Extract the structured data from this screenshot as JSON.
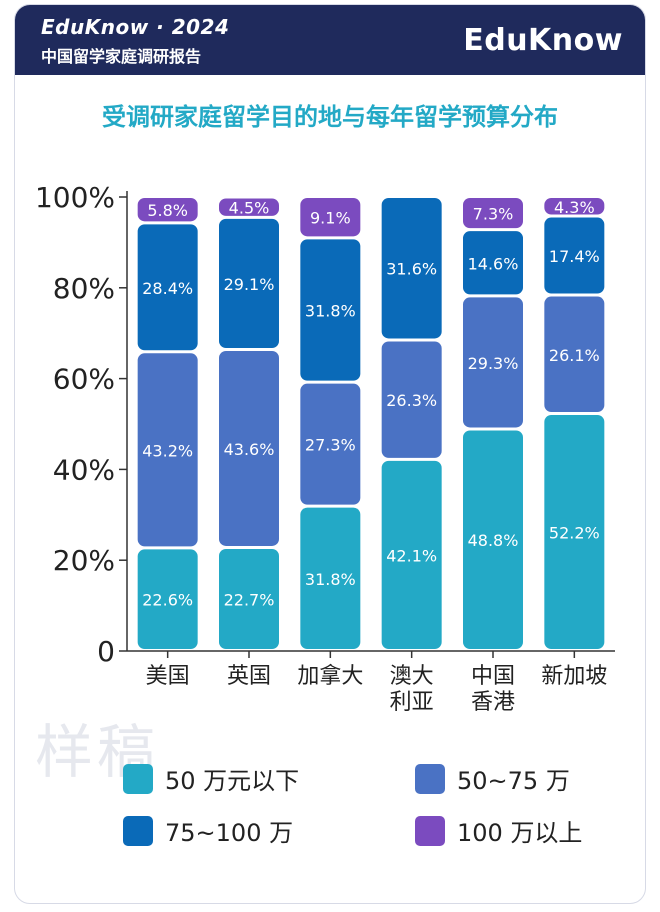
{
  "header": {
    "brand": "EduKnow · 2024",
    "subtitle": "中国留学家庭调研报告",
    "logo": "EduKnow"
  },
  "watermark": "样稿",
  "chart_data": {
    "type": "bar",
    "stacked": true,
    "title": "受调研家庭留学目的地与每年留学预算分布",
    "categories": [
      [
        "美国"
      ],
      [
        "英国"
      ],
      [
        "加拿大"
      ],
      [
        "澳大",
        "利亚"
      ],
      [
        "中国",
        "香港"
      ],
      [
        "新加坡"
      ]
    ],
    "ylim": [
      0,
      100
    ],
    "yticks": [
      "0",
      "20%",
      "40%",
      "60%",
      "80%",
      "100%"
    ],
    "series": [
      {
        "name": "50 万元以下",
        "color": "#23a9c6",
        "values": [
          22.6,
          22.7,
          31.8,
          42.1,
          48.8,
          52.2
        ],
        "labels": [
          "22.6%",
          "22.7%",
          "31.8%",
          "42.1%",
          "48.8%",
          "52.2%"
        ]
      },
      {
        "name": "50~75 万",
        "color": "#4a72c4",
        "values": [
          43.2,
          43.6,
          27.3,
          26.3,
          29.3,
          26.1
        ],
        "labels": [
          "43.2%",
          "43.6%",
          "27.3%",
          "26.3%",
          "29.3%",
          "26.1%"
        ]
      },
      {
        "name": "75~100 万",
        "color": "#0a6ab8",
        "values": [
          28.4,
          29.1,
          31.8,
          31.6,
          14.6,
          17.4
        ],
        "labels": [
          "28.4%",
          "29.1%",
          "31.8%",
          "31.6%",
          "14.6%",
          "17.4%"
        ]
      },
      {
        "name": "100 万以上",
        "color": "#7b4bbf",
        "values": [
          5.8,
          4.5,
          9.1,
          0,
          7.3,
          4.3
        ],
        "labels": [
          "5.8%",
          "4.5%",
          "9.1%",
          "",
          "7.3%",
          "4.3%"
        ]
      }
    ]
  }
}
